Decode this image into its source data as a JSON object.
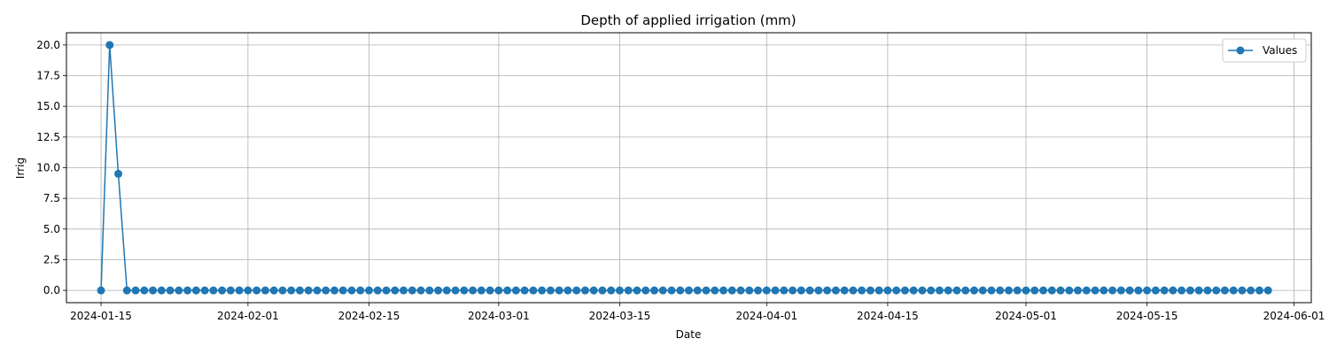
{
  "chart_data": {
    "type": "line",
    "title": "Depth of applied irrigation (mm)",
    "xlabel": "Date",
    "ylabel": "Irrig",
    "x_start": "2024-01-15",
    "x_end": "2024-05-29",
    "xlim": [
      "2024-01-11",
      "2024-06-03"
    ],
    "ylim": [
      -1,
      21
    ],
    "x_ticks": [
      "2024-01-15",
      "2024-02-01",
      "2024-02-15",
      "2024-03-01",
      "2024-03-15",
      "2024-04-01",
      "2024-04-15",
      "2024-05-01",
      "2024-05-15",
      "2024-06-01"
    ],
    "y_ticks": [
      "0.0",
      "2.5",
      "5.0",
      "7.5",
      "10.0",
      "12.5",
      "15.0",
      "17.5",
      "20.0"
    ],
    "grid": true,
    "legend": "upper right",
    "series": [
      {
        "name": "Values",
        "color": "#1f77b4",
        "marker": "circle",
        "values": [
          0,
          20,
          9.5,
          0,
          0,
          0,
          0,
          0,
          0,
          0,
          0,
          0,
          0,
          0,
          0,
          0,
          0,
          0,
          0,
          0,
          0,
          0,
          0,
          0,
          0,
          0,
          0,
          0,
          0,
          0,
          0,
          0,
          0,
          0,
          0,
          0,
          0,
          0,
          0,
          0,
          0,
          0,
          0,
          0,
          0,
          0,
          0,
          0,
          0,
          0,
          0,
          0,
          0,
          0,
          0,
          0,
          0,
          0,
          0,
          0,
          0,
          0,
          0,
          0,
          0,
          0,
          0,
          0,
          0,
          0,
          0,
          0,
          0,
          0,
          0,
          0,
          0,
          0,
          0,
          0,
          0,
          0,
          0,
          0,
          0,
          0,
          0,
          0,
          0,
          0,
          0,
          0,
          0,
          0,
          0,
          0,
          0,
          0,
          0,
          0,
          0,
          0,
          0,
          0,
          0,
          0,
          0,
          0,
          0,
          0,
          0,
          0,
          0,
          0,
          0,
          0,
          0,
          0,
          0,
          0,
          0,
          0,
          0,
          0,
          0,
          0,
          0,
          0,
          0,
          0,
          0,
          0,
          0,
          0,
          0,
          0
        ]
      }
    ]
  }
}
